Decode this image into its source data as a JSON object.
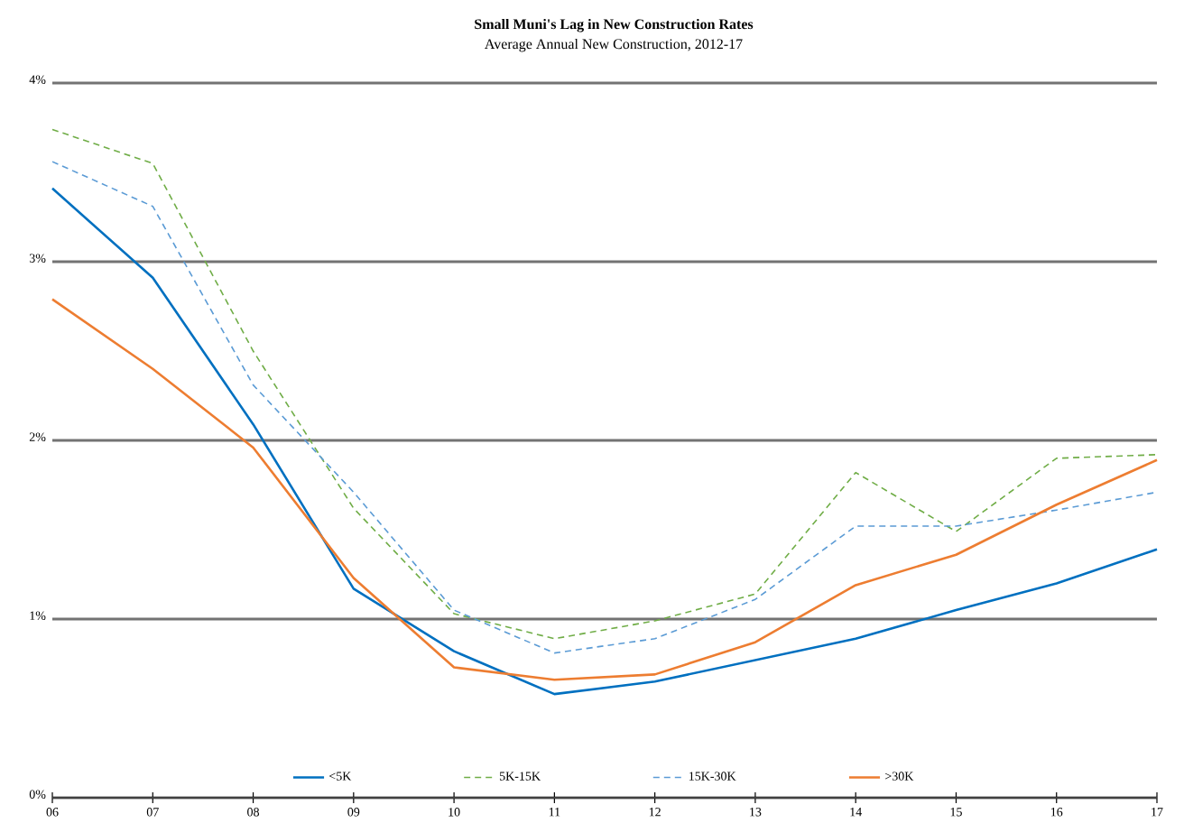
{
  "chart_data": {
    "type": "line",
    "title": "Small Muni's Lag in New Construction Rates",
    "subtitle": "Average Annual New Construction, 2012-17",
    "categories": [
      "06",
      "07",
      "08",
      "09",
      "10",
      "11",
      "12",
      "13",
      "14",
      "15",
      "16",
      "17"
    ],
    "series": [
      {
        "name": "<5K",
        "color": "#0070c0",
        "line_style": "solid",
        "values": [
          3.41,
          2.91,
          2.09,
          1.17,
          0.82,
          0.58,
          0.65,
          0.77,
          0.89,
          1.05,
          1.2,
          1.39
        ]
      },
      {
        "name": "5K-15K",
        "color": "#70ad47",
        "line_style": "dashed",
        "values": [
          3.74,
          3.55,
          2.5,
          1.62,
          1.03,
          0.89,
          0.99,
          1.14,
          1.82,
          1.49,
          1.9,
          1.92
        ]
      },
      {
        "name": "15K-30K",
        "color": "#5b9bd5",
        "line_style": "dashed",
        "values": [
          3.56,
          3.31,
          2.31,
          1.71,
          1.05,
          0.81,
          0.89,
          1.11,
          1.52,
          1.52,
          1.61,
          1.71
        ]
      },
      {
        "name": ">30K",
        "color": "#ed7d31",
        "line_style": "solid",
        "values": [
          2.79,
          2.4,
          1.96,
          1.23,
          0.73,
          0.66,
          0.69,
          0.87,
          1.19,
          1.36,
          1.64,
          1.89
        ]
      }
    ],
    "ylim": [
      0,
      4
    ],
    "yticks": [
      {
        "value": 0,
        "label": "0%"
      },
      {
        "value": 1,
        "label": "1%"
      },
      {
        "value": 2,
        "label": "2%"
      },
      {
        "value": 3,
        "label": "3%"
      },
      {
        "value": 4,
        "label": "4%"
      }
    ],
    "grid": "y",
    "legend": "bottom",
    "marker": "none"
  }
}
